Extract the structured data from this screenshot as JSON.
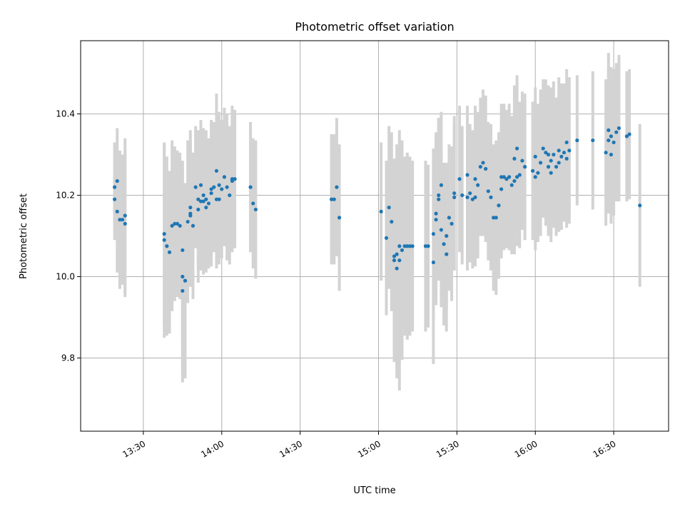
{
  "chart_data": {
    "type": "scatter",
    "title": "Photometric offset variation",
    "xlabel": "UTC time",
    "ylabel": "Photometric offset",
    "x_ticks": [
      "13:30",
      "14:00",
      "14:30",
      "15:00",
      "15:30",
      "16:00",
      "16:30"
    ],
    "y_ticks": [
      "9.8",
      "10.0",
      "10.2",
      "10.4"
    ],
    "xlim": [
      "13:06",
      "16:51"
    ],
    "ylim": [
      9.62,
      10.58
    ],
    "grid": true,
    "colors": {
      "point": "#1f77b4",
      "errorbar": "#d3d3d3",
      "grid": "#b0b0b0"
    },
    "points": [
      {
        "x": "13:19",
        "y": 10.19,
        "e": 0.1
      },
      {
        "x": "13:19",
        "y": 10.22,
        "e": 0.11
      },
      {
        "x": "13:20",
        "y": 10.235,
        "e": 0.13
      },
      {
        "x": "13:20",
        "y": 10.16,
        "e": 0.15
      },
      {
        "x": "13:21",
        "y": 10.14,
        "e": 0.17
      },
      {
        "x": "13:22",
        "y": 10.14,
        "e": 0.16
      },
      {
        "x": "13:23",
        "y": 10.13,
        "e": 0.18
      },
      {
        "x": "13:23",
        "y": 10.15,
        "e": 0.19
      },
      {
        "x": "13:38",
        "y": 10.105,
        "e": 0.22
      },
      {
        "x": "13:38",
        "y": 10.09,
        "e": 0.24
      },
      {
        "x": "13:39",
        "y": 10.075,
        "e": 0.22
      },
      {
        "x": "13:40",
        "y": 10.06,
        "e": 0.2
      },
      {
        "x": "13:41",
        "y": 10.125,
        "e": 0.21
      },
      {
        "x": "13:42",
        "y": 10.13,
        "e": 0.19
      },
      {
        "x": "13:43",
        "y": 10.13,
        "e": 0.18
      },
      {
        "x": "13:44",
        "y": 10.125,
        "e": 0.18
      },
      {
        "x": "13:45",
        "y": 10.065,
        "e": 0.22
      },
      {
        "x": "13:45",
        "y": 9.965,
        "e": 0.2
      },
      {
        "x": "13:45",
        "y": 10.0,
        "e": 0.26
      },
      {
        "x": "13:46",
        "y": 9.99,
        "e": 0.24
      },
      {
        "x": "13:46",
        "y": 9.99,
        "e": 0.18
      },
      {
        "x": "13:47",
        "y": 10.135,
        "e": 0.2
      },
      {
        "x": "13:48",
        "y": 10.17,
        "e": 0.19
      },
      {
        "x": "13:48",
        "y": 10.155,
        "e": 0.18
      },
      {
        "x": "13:48",
        "y": 10.15,
        "e": 0.17
      },
      {
        "x": "13:49",
        "y": 10.125,
        "e": 0.18
      },
      {
        "x": "13:50",
        "y": 10.22,
        "e": 0.15
      },
      {
        "x": "13:51",
        "y": 10.19,
        "e": 0.17
      },
      {
        "x": "13:51",
        "y": 10.165,
        "e": 0.18
      },
      {
        "x": "13:52",
        "y": 10.225,
        "e": 0.16
      },
      {
        "x": "13:52",
        "y": 10.185,
        "e": 0.17
      },
      {
        "x": "13:53",
        "y": 10.2,
        "e": 0.16
      },
      {
        "x": "13:53",
        "y": 10.185,
        "e": 0.18
      },
      {
        "x": "13:54",
        "y": 10.17,
        "e": 0.16
      },
      {
        "x": "13:54",
        "y": 10.19,
        "e": 0.17
      },
      {
        "x": "13:55",
        "y": 10.18,
        "e": 0.16
      },
      {
        "x": "13:56",
        "y": 10.215,
        "e": 0.17
      },
      {
        "x": "13:56",
        "y": 10.205,
        "e": 0.18
      },
      {
        "x": "13:57",
        "y": 10.22,
        "e": 0.16
      },
      {
        "x": "13:58",
        "y": 10.26,
        "e": 0.19
      },
      {
        "x": "13:58",
        "y": 10.19,
        "e": 0.17
      },
      {
        "x": "13:59",
        "y": 10.19,
        "e": 0.16
      },
      {
        "x": "13:59",
        "y": 10.225,
        "e": 0.18
      },
      {
        "x": "14:00",
        "y": 10.215,
        "e": 0.17
      },
      {
        "x": "14:01",
        "y": 10.245,
        "e": 0.17
      },
      {
        "x": "14:02",
        "y": 10.22,
        "e": 0.18
      },
      {
        "x": "14:03",
        "y": 10.2,
        "e": 0.17
      },
      {
        "x": "14:04",
        "y": 10.24,
        "e": 0.18
      },
      {
        "x": "14:04",
        "y": 10.235,
        "e": 0.17
      },
      {
        "x": "14:05",
        "y": 10.24,
        "e": 0.17
      },
      {
        "x": "14:11",
        "y": 10.22,
        "e": 0.16
      },
      {
        "x": "14:12",
        "y": 10.18,
        "e": 0.16
      },
      {
        "x": "14:13",
        "y": 10.165,
        "e": 0.17
      },
      {
        "x": "14:42",
        "y": 10.19,
        "e": 0.16
      },
      {
        "x": "14:43",
        "y": 10.19,
        "e": 0.16
      },
      {
        "x": "14:44",
        "y": 10.22,
        "e": 0.17
      },
      {
        "x": "14:45",
        "y": 10.145,
        "e": 0.18
      },
      {
        "x": "15:01",
        "y": 10.16,
        "e": 0.17
      },
      {
        "x": "15:03",
        "y": 10.095,
        "e": 0.19
      },
      {
        "x": "15:04",
        "y": 10.17,
        "e": 0.2
      },
      {
        "x": "15:05",
        "y": 10.135,
        "e": 0.22
      },
      {
        "x": "15:06",
        "y": 10.05,
        "e": 0.23
      },
      {
        "x": "15:06",
        "y": 10.04,
        "e": 0.25
      },
      {
        "x": "15:07",
        "y": 10.055,
        "e": 0.27
      },
      {
        "x": "15:07",
        "y": 10.02,
        "e": 0.27
      },
      {
        "x": "15:08",
        "y": 10.04,
        "e": 0.32
      },
      {
        "x": "15:08",
        "y": 10.075,
        "e": 0.25
      },
      {
        "x": "15:09",
        "y": 10.065,
        "e": 0.27
      },
      {
        "x": "15:10",
        "y": 10.075,
        "e": 0.22
      },
      {
        "x": "15:11",
        "y": 10.075,
        "e": 0.23
      },
      {
        "x": "15:12",
        "y": 10.075,
        "e": 0.22
      },
      {
        "x": "15:13",
        "y": 10.075,
        "e": 0.21
      },
      {
        "x": "15:18",
        "y": 10.075,
        "e": 0.21
      },
      {
        "x": "15:19",
        "y": 10.075,
        "e": 0.2
      },
      {
        "x": "15:21",
        "y": 10.035,
        "e": 0.25
      },
      {
        "x": "15:21",
        "y": 10.105,
        "e": 0.21
      },
      {
        "x": "15:22",
        "y": 10.14,
        "e": 0.21
      },
      {
        "x": "15:22",
        "y": 10.155,
        "e": 0.2
      },
      {
        "x": "15:23",
        "y": 10.19,
        "e": 0.2
      },
      {
        "x": "15:23",
        "y": 10.2,
        "e": 0.19
      },
      {
        "x": "15:24",
        "y": 10.225,
        "e": 0.18
      },
      {
        "x": "15:24",
        "y": 10.115,
        "e": 0.19
      },
      {
        "x": "15:25",
        "y": 10.08,
        "e": 0.2
      },
      {
        "x": "15:26",
        "y": 10.055,
        "e": 0.19
      },
      {
        "x": "15:26",
        "y": 10.1,
        "e": 0.18
      },
      {
        "x": "15:27",
        "y": 10.145,
        "e": 0.18
      },
      {
        "x": "15:28",
        "y": 10.13,
        "e": 0.19
      },
      {
        "x": "15:29",
        "y": 10.195,
        "e": 0.18
      },
      {
        "x": "15:29",
        "y": 10.205,
        "e": 0.19
      },
      {
        "x": "15:31",
        "y": 10.24,
        "e": 0.18
      },
      {
        "x": "15:32",
        "y": 10.2,
        "e": 0.17
      },
      {
        "x": "15:34",
        "y": 10.25,
        "e": 0.17
      },
      {
        "x": "15:34",
        "y": 10.195,
        "e": 0.18
      },
      {
        "x": "15:35",
        "y": 10.205,
        "e": 0.17
      },
      {
        "x": "15:36",
        "y": 10.19,
        "e": 0.17
      },
      {
        "x": "15:37",
        "y": 10.195,
        "e": 0.17
      },
      {
        "x": "15:37",
        "y": 10.24,
        "e": 0.18
      },
      {
        "x": "15:38",
        "y": 10.225,
        "e": 0.18
      },
      {
        "x": "15:39",
        "y": 10.27,
        "e": 0.17
      },
      {
        "x": "15:40",
        "y": 10.28,
        "e": 0.18
      },
      {
        "x": "15:41",
        "y": 10.265,
        "e": 0.18
      },
      {
        "x": "15:42",
        "y": 10.21,
        "e": 0.17
      },
      {
        "x": "15:43",
        "y": 10.195,
        "e": 0.18
      },
      {
        "x": "15:44",
        "y": 10.145,
        "e": 0.18
      },
      {
        "x": "15:45",
        "y": 10.145,
        "e": 0.19
      },
      {
        "x": "15:46",
        "y": 10.175,
        "e": 0.18
      },
      {
        "x": "15:47",
        "y": 10.245,
        "e": 0.18
      },
      {
        "x": "15:47",
        "y": 10.215,
        "e": 0.17
      },
      {
        "x": "15:48",
        "y": 10.245,
        "e": 0.18
      },
      {
        "x": "15:49",
        "y": 10.24,
        "e": 0.17
      },
      {
        "x": "15:50",
        "y": 10.245,
        "e": 0.18
      },
      {
        "x": "15:51",
        "y": 10.225,
        "e": 0.17
      },
      {
        "x": "15:52",
        "y": 10.235,
        "e": 0.18
      },
      {
        "x": "15:52",
        "y": 10.29,
        "e": 0.18
      },
      {
        "x": "15:53",
        "y": 10.315,
        "e": 0.18
      },
      {
        "x": "15:53",
        "y": 10.245,
        "e": 0.17
      },
      {
        "x": "15:54",
        "y": 10.25,
        "e": 0.18
      },
      {
        "x": "15:55",
        "y": 10.285,
        "e": 0.17
      },
      {
        "x": "15:56",
        "y": 10.27,
        "e": 0.18
      },
      {
        "x": "15:59",
        "y": 10.26,
        "e": 0.17
      },
      {
        "x": "16:00",
        "y": 10.295,
        "e": 0.17
      },
      {
        "x": "16:00",
        "y": 10.245,
        "e": 0.18
      },
      {
        "x": "16:01",
        "y": 10.255,
        "e": 0.17
      },
      {
        "x": "16:02",
        "y": 10.28,
        "e": 0.18
      },
      {
        "x": "16:03",
        "y": 10.315,
        "e": 0.17
      },
      {
        "x": "16:04",
        "y": 10.305,
        "e": 0.18
      },
      {
        "x": "16:05",
        "y": 10.27,
        "e": 0.17
      },
      {
        "x": "16:05",
        "y": 10.3,
        "e": 0.17
      },
      {
        "x": "16:06",
        "y": 10.285,
        "e": 0.18
      },
      {
        "x": "16:06",
        "y": 10.255,
        "e": 0.17
      },
      {
        "x": "16:07",
        "y": 10.3,
        "e": 0.18
      },
      {
        "x": "16:08",
        "y": 10.27,
        "e": 0.17
      },
      {
        "x": "16:09",
        "y": 10.31,
        "e": 0.18
      },
      {
        "x": "16:09",
        "y": 10.28,
        "e": 0.17
      },
      {
        "x": "16:10",
        "y": 10.295,
        "e": 0.18
      },
      {
        "x": "16:11",
        "y": 10.305,
        "e": 0.17
      },
      {
        "x": "16:12",
        "y": 10.33,
        "e": 0.18
      },
      {
        "x": "16:12",
        "y": 10.29,
        "e": 0.17
      },
      {
        "x": "16:13",
        "y": 10.31,
        "e": 0.18
      },
      {
        "x": "16:16",
        "y": 10.335,
        "e": 0.16
      },
      {
        "x": "16:22",
        "y": 10.335,
        "e": 0.17
      },
      {
        "x": "16:27",
        "y": 10.305,
        "e": 0.18
      },
      {
        "x": "16:28",
        "y": 10.36,
        "e": 0.19
      },
      {
        "x": "16:28",
        "y": 10.335,
        "e": 0.18
      },
      {
        "x": "16:29",
        "y": 10.345,
        "e": 0.17
      },
      {
        "x": "16:29",
        "y": 10.3,
        "e": 0.17
      },
      {
        "x": "16:30",
        "y": 10.33,
        "e": 0.18
      },
      {
        "x": "16:31",
        "y": 10.355,
        "e": 0.17
      },
      {
        "x": "16:32",
        "y": 10.365,
        "e": 0.18
      },
      {
        "x": "16:35",
        "y": 10.345,
        "e": 0.16
      },
      {
        "x": "16:36",
        "y": 10.35,
        "e": 0.16
      },
      {
        "x": "16:40",
        "y": 10.175,
        "e": 0.2
      }
    ]
  }
}
